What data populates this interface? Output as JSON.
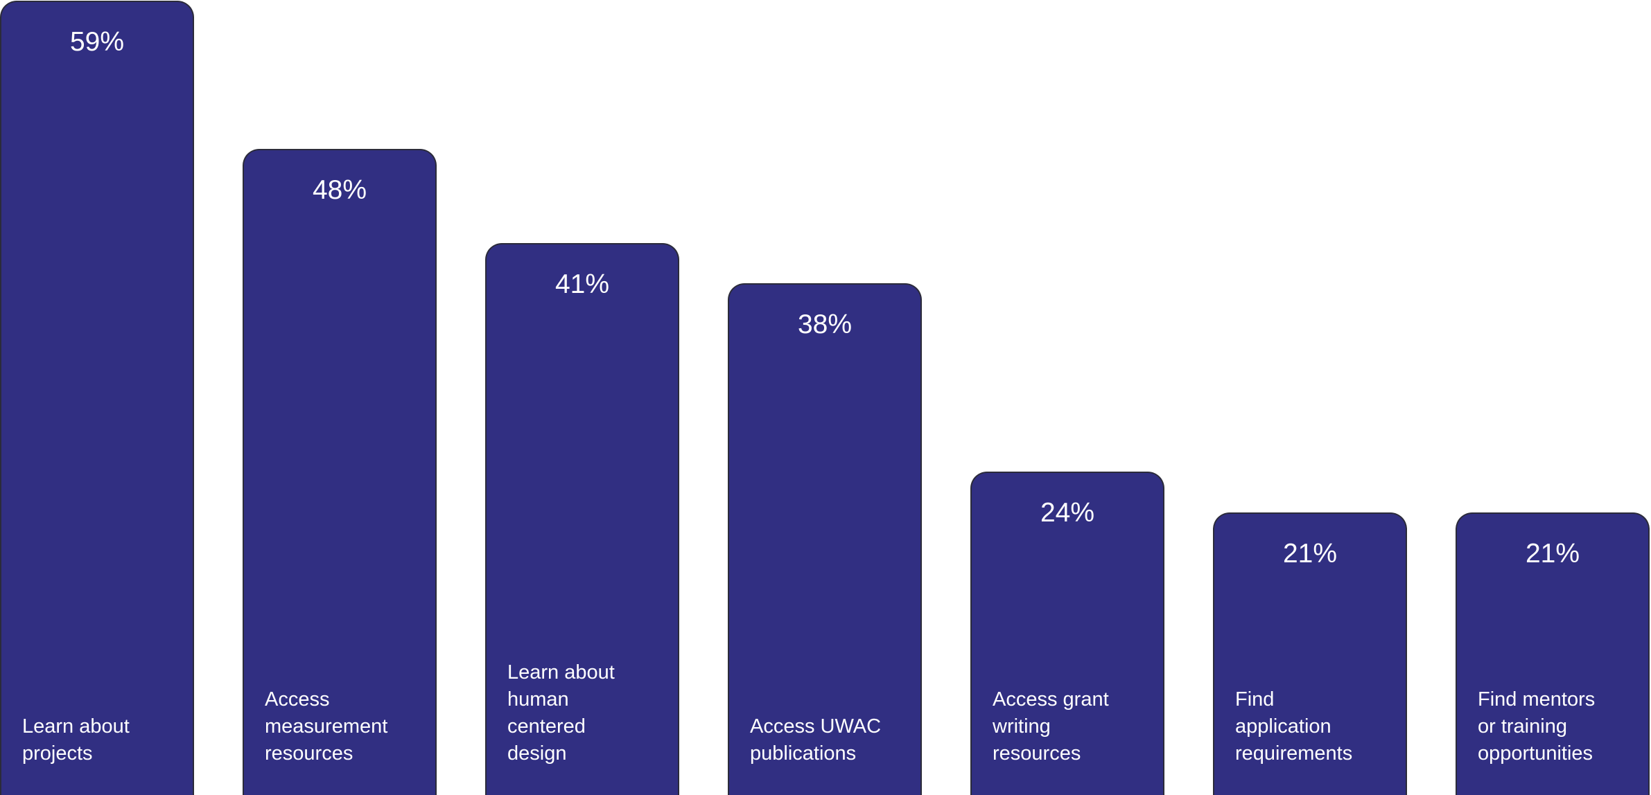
{
  "chart_data": {
    "type": "bar",
    "categories": [
      "Learn about projects",
      "Access measurement resources",
      "Learn about human centered design",
      "Access UWAC publications",
      "Access grant writing resources",
      "Find application requirements",
      "Find mentors or training opportunities"
    ],
    "values": [
      59,
      48,
      41,
      38,
      24,
      21,
      21
    ],
    "value_labels": [
      "59%",
      "48%",
      "41%",
      "38%",
      "24%",
      "21%",
      "21%"
    ],
    "label_lines": [
      [
        "Learn about",
        "projects"
      ],
      [
        "Access",
        "measurement",
        "resources"
      ],
      [
        "Learn about",
        "human",
        "centered",
        "design"
      ],
      [
        "Access UWAC",
        "publications"
      ],
      [
        "Access grant",
        "writing",
        "resources"
      ],
      [
        "Find",
        "application",
        "requirements"
      ],
      [
        "Find mentors",
        "or training",
        "opportunities"
      ]
    ],
    "unit": "%",
    "ylim": [
      0,
      59
    ],
    "grid": false,
    "legend": "none",
    "bar_color": "#312f82",
    "title": "",
    "xlabel": "",
    "ylabel": ""
  }
}
